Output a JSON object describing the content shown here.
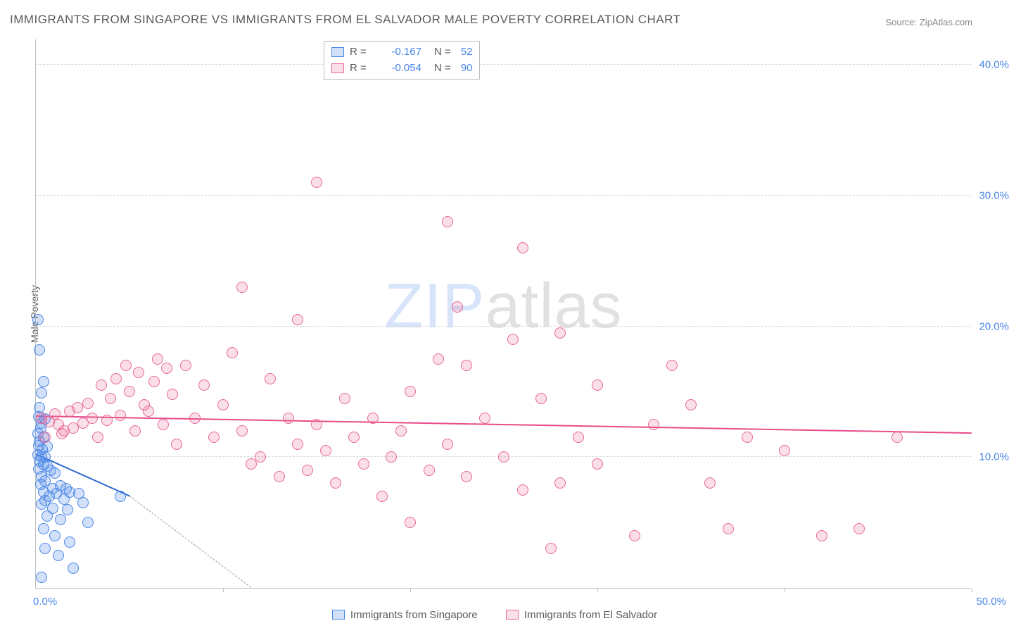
{
  "title": "IMMIGRANTS FROM SINGAPORE VS IMMIGRANTS FROM EL SALVADOR MALE POVERTY CORRELATION CHART",
  "source": "Source: ZipAtlas.com",
  "ylabel": "Male Poverty",
  "watermark": {
    "a": "ZIP",
    "b": "atlas"
  },
  "chart": {
    "type": "scatter",
    "xlim": [
      0,
      50
    ],
    "ylim": [
      0,
      42
    ],
    "grid_y": [
      10,
      20,
      30,
      40
    ],
    "xticks": [
      0,
      10,
      20,
      30,
      40,
      50
    ],
    "ytick_labels": [
      {
        "v": 10,
        "t": "10.0%"
      },
      {
        "v": 20,
        "t": "20.0%"
      },
      {
        "v": 30,
        "t": "30.0%"
      },
      {
        "v": 40,
        "t": "40.0%"
      }
    ],
    "x_left_label": "0.0%",
    "x_right_label": "50.0%",
    "background_color": "#ffffff",
    "grid_color": "#d8d8d8",
    "axis_color": "#c0c0c0",
    "text_color": "#5a5a5a",
    "value_color": "#4a86e8",
    "point_radius": 8,
    "point_stroke": 1.5
  },
  "series": [
    {
      "name": "Immigrants from Singapore",
      "fill": "rgba(74,134,232,0.25)",
      "stroke": "#4a86e8",
      "R": "-0.167",
      "N": "52",
      "trend": {
        "x1": 0,
        "y1": 10.2,
        "x2": 5,
        "y2": 7.0,
        "color": "#2f6ad0"
      },
      "trend_extend": {
        "x1": 5,
        "y1": 7.0,
        "x2": 11.5,
        "y2": 0
      },
      "points": [
        [
          0.1,
          20.5
        ],
        [
          0.2,
          18.2
        ],
        [
          0.4,
          15.8
        ],
        [
          0.3,
          14.9
        ],
        [
          0.2,
          13.8
        ],
        [
          0.15,
          13.1
        ],
        [
          0.3,
          12.6
        ],
        [
          0.5,
          12.9
        ],
        [
          0.25,
          12.2
        ],
        [
          0.1,
          11.8
        ],
        [
          0.4,
          11.5
        ],
        [
          0.2,
          11.2
        ],
        [
          0.15,
          10.9
        ],
        [
          0.35,
          10.6
        ],
        [
          0.6,
          10.8
        ],
        [
          0.1,
          10.2
        ],
        [
          0.3,
          10.0
        ],
        [
          0.5,
          10.0
        ],
        [
          0.2,
          9.7
        ],
        [
          0.4,
          9.4
        ],
        [
          0.15,
          9.1
        ],
        [
          0.6,
          9.3
        ],
        [
          0.8,
          9.0
        ],
        [
          1.0,
          8.8
        ],
        [
          0.3,
          8.5
        ],
        [
          0.5,
          8.2
        ],
        [
          0.25,
          7.9
        ],
        [
          0.9,
          7.6
        ],
        [
          1.3,
          7.8
        ],
        [
          1.6,
          7.6
        ],
        [
          0.4,
          7.3
        ],
        [
          0.7,
          7.0
        ],
        [
          1.1,
          7.2
        ],
        [
          1.8,
          7.3
        ],
        [
          2.3,
          7.2
        ],
        [
          0.5,
          6.7
        ],
        [
          1.5,
          6.8
        ],
        [
          2.5,
          6.5
        ],
        [
          0.3,
          6.4
        ],
        [
          0.9,
          6.1
        ],
        [
          1.7,
          6.0
        ],
        [
          0.6,
          5.5
        ],
        [
          1.3,
          5.2
        ],
        [
          2.8,
          5.0
        ],
        [
          4.5,
          7.0
        ],
        [
          0.4,
          4.5
        ],
        [
          1.0,
          4.0
        ],
        [
          1.8,
          3.5
        ],
        [
          0.5,
          3.0
        ],
        [
          1.2,
          2.5
        ],
        [
          2.0,
          1.5
        ],
        [
          0.3,
          0.8
        ]
      ]
    },
    {
      "name": "Immigrants from El Salvador",
      "fill": "rgba(232,105,150,0.22)",
      "stroke": "#e86996",
      "R": "-0.054",
      "N": "90",
      "trend": {
        "x1": 0,
        "y1": 13.1,
        "x2": 50,
        "y2": 11.8,
        "color": "#e84b8a"
      },
      "points": [
        [
          0.3,
          13.0
        ],
        [
          0.7,
          12.7
        ],
        [
          1.0,
          13.3
        ],
        [
          1.2,
          12.5
        ],
        [
          1.5,
          12.0
        ],
        [
          1.8,
          13.5
        ],
        [
          2.0,
          12.2
        ],
        [
          0.5,
          11.5
        ],
        [
          1.4,
          11.8
        ],
        [
          2.2,
          13.8
        ],
        [
          2.5,
          12.6
        ],
        [
          2.8,
          14.1
        ],
        [
          3.0,
          13.0
        ],
        [
          3.3,
          11.5
        ],
        [
          3.5,
          15.5
        ],
        [
          3.8,
          12.8
        ],
        [
          4.0,
          14.5
        ],
        [
          4.3,
          16.0
        ],
        [
          4.5,
          13.2
        ],
        [
          4.8,
          17.0
        ],
        [
          5.0,
          15.0
        ],
        [
          5.3,
          12.0
        ],
        [
          5.5,
          16.5
        ],
        [
          5.8,
          14.0
        ],
        [
          6.0,
          13.5
        ],
        [
          6.3,
          15.8
        ],
        [
          6.5,
          17.5
        ],
        [
          6.8,
          12.5
        ],
        [
          7.0,
          16.8
        ],
        [
          7.3,
          14.8
        ],
        [
          7.5,
          11.0
        ],
        [
          8.0,
          17.0
        ],
        [
          8.5,
          13.0
        ],
        [
          9.0,
          15.5
        ],
        [
          9.5,
          11.5
        ],
        [
          10.0,
          14.0
        ],
        [
          10.5,
          18.0
        ],
        [
          11.0,
          12.0
        ],
        [
          11.0,
          23.0
        ],
        [
          11.5,
          9.5
        ],
        [
          12.0,
          10.0
        ],
        [
          12.5,
          16.0
        ],
        [
          13.0,
          8.5
        ],
        [
          13.5,
          13.0
        ],
        [
          14.0,
          11.0
        ],
        [
          14.0,
          20.5
        ],
        [
          14.5,
          9.0
        ],
        [
          15.0,
          12.5
        ],
        [
          15.0,
          31.0
        ],
        [
          15.5,
          10.5
        ],
        [
          16.0,
          8.0
        ],
        [
          16.5,
          14.5
        ],
        [
          17.0,
          11.5
        ],
        [
          17.5,
          9.5
        ],
        [
          18.0,
          13.0
        ],
        [
          18.5,
          7.0
        ],
        [
          19.0,
          10.0
        ],
        [
          19.5,
          12.0
        ],
        [
          20.0,
          15.0
        ],
        [
          20.0,
          5.0
        ],
        [
          21.0,
          9.0
        ],
        [
          21.5,
          17.5
        ],
        [
          22.0,
          11.0
        ],
        [
          22.0,
          28.0
        ],
        [
          22.5,
          21.5
        ],
        [
          23.0,
          8.5
        ],
        [
          23.0,
          17.0
        ],
        [
          24.0,
          13.0
        ],
        [
          25.0,
          10.0
        ],
        [
          25.5,
          19.0
        ],
        [
          26.0,
          26.0
        ],
        [
          26.0,
          7.5
        ],
        [
          27.0,
          14.5
        ],
        [
          27.5,
          3.0
        ],
        [
          28.0,
          8.0
        ],
        [
          28.0,
          19.5
        ],
        [
          29.0,
          11.5
        ],
        [
          30.0,
          15.5
        ],
        [
          30.0,
          9.5
        ],
        [
          32.0,
          4.0
        ],
        [
          33.0,
          12.5
        ],
        [
          34.0,
          17.0
        ],
        [
          35.0,
          14.0
        ],
        [
          36.0,
          8.0
        ],
        [
          37.0,
          4.5
        ],
        [
          38.0,
          11.5
        ],
        [
          40.0,
          10.5
        ],
        [
          42.0,
          4.0
        ],
        [
          44.0,
          4.5
        ],
        [
          46.0,
          11.5
        ]
      ]
    }
  ],
  "legend_bottom": [
    {
      "label": "Immigrants from Singapore",
      "fill": "rgba(74,134,232,0.25)",
      "stroke": "#4a86e8"
    },
    {
      "label": "Immigrants from El Salvador",
      "fill": "rgba(232,105,150,0.22)",
      "stroke": "#e86996"
    }
  ]
}
